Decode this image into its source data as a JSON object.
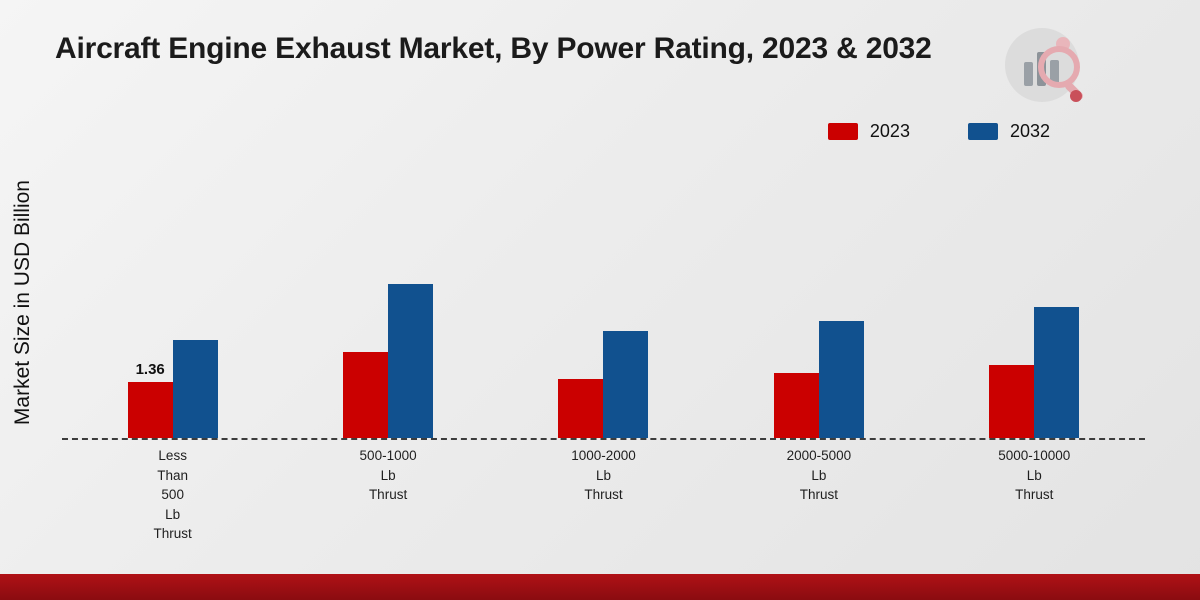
{
  "title": "Aircraft Engine Exhaust Market, By Power Rating, 2023 & 2032",
  "y_axis_label": "Market Size in USD Billion",
  "legend": {
    "items": [
      {
        "label": "2023",
        "color": "#cb0000"
      },
      {
        "label": "2032",
        "color": "#11518f"
      }
    ]
  },
  "logo": {
    "name": "market-research-brand-logo"
  },
  "chart_data": {
    "type": "bar",
    "title": "Aircraft Engine Exhaust Market, By Power Rating, 2023 & 2032",
    "ylabel": "Market Size in USD Billion",
    "xlabel": "",
    "grid": false,
    "legend_position": "top-right",
    "baseline_style": "dashed",
    "ylim": [
      0,
      4.5
    ],
    "categories": [
      [
        "Less",
        "Than",
        "500",
        "Lb",
        "Thrust"
      ],
      [
        "500-1000",
        "Lb",
        "Thrust"
      ],
      [
        "1000-2000",
        "Lb",
        "Thrust"
      ],
      [
        "2000-5000",
        "Lb",
        "Thrust"
      ],
      [
        "5000-10000",
        "Lb",
        "Thrust"
      ]
    ],
    "series": [
      {
        "name": "2023",
        "color": "#cb0000",
        "values": [
          1.36,
          2.1,
          1.45,
          1.58,
          1.77
        ]
      },
      {
        "name": "2032",
        "color": "#11518f",
        "values": [
          2.4,
          3.75,
          2.6,
          2.85,
          3.2
        ]
      }
    ],
    "bar_labels": [
      {
        "series": "2023",
        "index": 0,
        "text": "1.36"
      }
    ]
  }
}
